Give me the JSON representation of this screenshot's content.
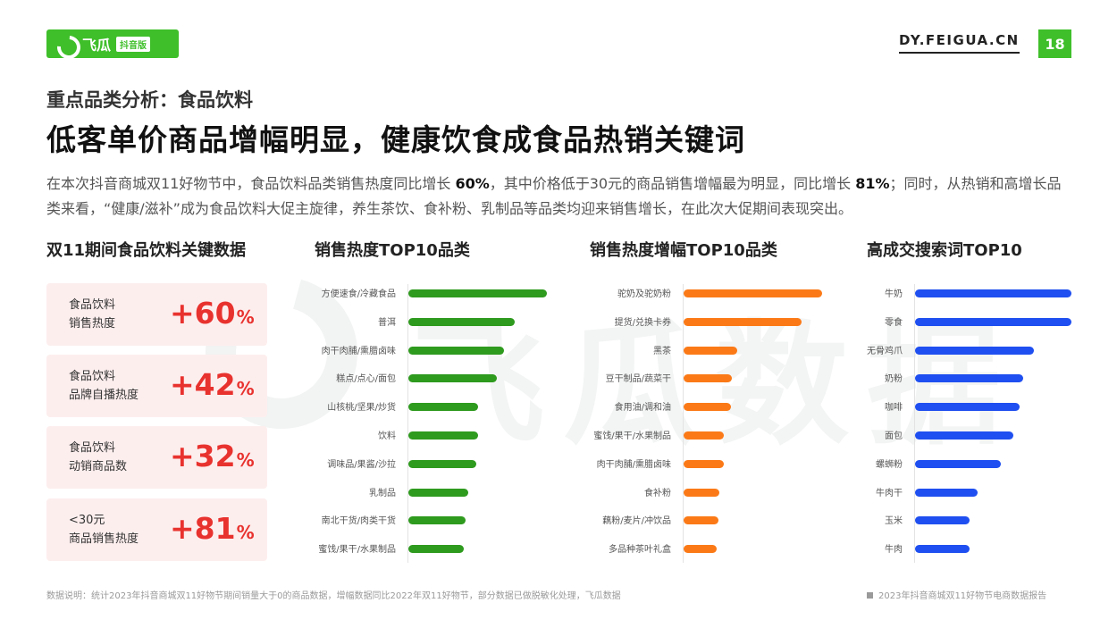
{
  "brand": {
    "logo_text": "飞瓜",
    "logo_badge": "抖音版",
    "site": "DY.FEIGUA.CN",
    "page_number": "18",
    "watermark": "飞瓜数据",
    "accent": "#3fbf2a"
  },
  "header": {
    "section_label": "重点品类分析：食品饮料",
    "headline": "低客单价商品增幅明显，健康饮食成食品热销关键词"
  },
  "intro": {
    "p1": "在本次抖音商城双11好物节中，食品饮料品类销售热度同比增长 ",
    "b1": "60%",
    "p2": "，其中价格低于30元的商品销售增幅最为明显，同比增长 ",
    "b2": "81%",
    "p3": "；同时，从热销和高增长品类来看，“健康/滋补”成为食品饮料大促主旋律，养生茶饮、食补粉、乳制品等品类均迎来销售增长，在此次大促期间表现突出。"
  },
  "key_stats": {
    "title": "双11期间食品饮料关键数据",
    "value_color": "#e8322e",
    "items": [
      {
        "line1": "食品饮料",
        "line2": "销售热度",
        "value": "+60",
        "unit": "%"
      },
      {
        "line1": "食品饮料",
        "line2": "品牌自播热度",
        "value": "+42",
        "unit": "%"
      },
      {
        "line1": "食品饮料",
        "line2": "动销商品数",
        "value": "+32",
        "unit": "%"
      },
      {
        "line1": "<30元",
        "line2": "商品销售热度",
        "value": "+81",
        "unit": "%"
      }
    ]
  },
  "chart_data": [
    {
      "type": "bar",
      "orientation": "horizontal",
      "title": "销售热度TOP10品类",
      "color": "#2e9a1e",
      "categories": [
        "方便速食/冷藏食品",
        "普洱",
        "肉干肉脯/熏腊卤味",
        "糕点/点心/面包",
        "山核桃/坚果/炒货",
        "饮料",
        "调味品/果酱/沙拉",
        "乳制品",
        "南北干货/肉类干货",
        "蜜饯/果干/水果制品"
      ],
      "values": [
        100,
        77,
        69,
        64,
        50,
        50,
        49,
        43,
        41,
        40
      ],
      "xlim": [
        0,
        100
      ],
      "axis_labels_shown": false
    },
    {
      "type": "bar",
      "orientation": "horizontal",
      "title": "销售热度增幅TOP10品类",
      "color": "#fb7a17",
      "categories": [
        "驼奶及驼奶粉",
        "提货/兑换卡券",
        "黑茶",
        "豆干制品/蔬菜干",
        "食用油/调和油",
        "蜜饯/果干/水果制品",
        "肉干肉脯/熏腊卤味",
        "食补粉",
        "藕粉/麦片/冲饮品",
        "多品种茶叶礼盒"
      ],
      "values": [
        100,
        85,
        39,
        35,
        34,
        29,
        29,
        26,
        25,
        24
      ],
      "xlim": [
        0,
        100
      ],
      "axis_labels_shown": false
    },
    {
      "type": "bar",
      "orientation": "horizontal",
      "title": "高成交搜索词TOP10",
      "color": "#1f4ff0",
      "categories": [
        "牛奶",
        "零食",
        "无骨鸡爪",
        "奶粉",
        "咖啡",
        "面包",
        "螺蛳粉",
        "牛肉干",
        "玉米",
        "牛肉"
      ],
      "values": [
        100,
        100,
        76,
        69,
        67,
        63,
        55,
        40,
        35,
        35
      ],
      "xlim": [
        0,
        100
      ],
      "axis_labels_shown": false
    }
  ],
  "footer": {
    "note": "数据说明：统计2023年抖音商城双11好物节期间销量大于0的商品数据，增幅数据同比2022年双11好物节，部分数据已做脱敏化处理，飞瓜数据",
    "source": "2023年抖音商城双11好物节电商数据报告"
  }
}
